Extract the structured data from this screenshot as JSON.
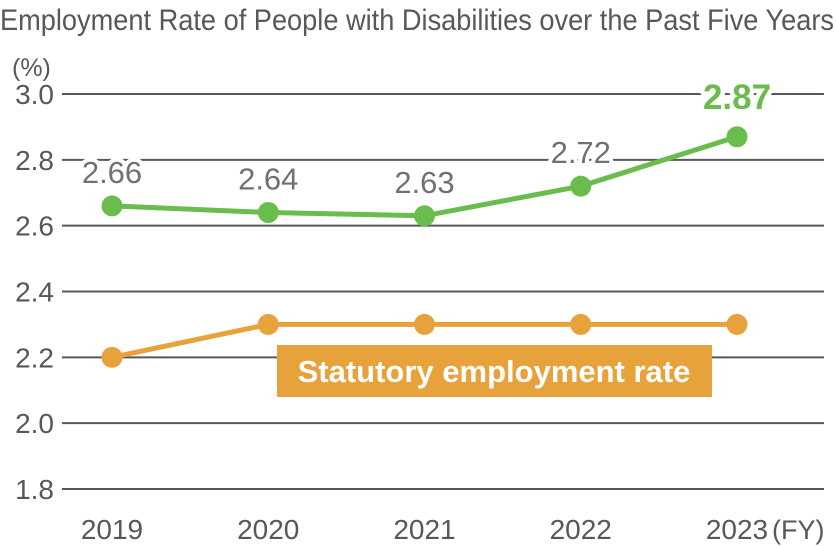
{
  "title": "Employment Rate of People with Disabilities over the Past Five Years",
  "y_axis_unit": "(%)",
  "x_axis_suffix": "(FY)",
  "statutory_label": "Statutory employment rate",
  "colors": {
    "background": "#ffffff",
    "axis_gray": "#595757",
    "data_label_gray": "#727070",
    "green": "#6abc4d",
    "orange": "#e8a23b",
    "label_outline": "#ffffff"
  },
  "chart_data": {
    "type": "line",
    "title": "Employment Rate of People with Disabilities over the Past Five Years",
    "ylabel": "(%)",
    "xlabel": "",
    "categories": [
      "2019",
      "2020",
      "2021",
      "2022",
      "2023"
    ],
    "x_suffix": "(FY)",
    "series": [
      {
        "name": "Employment rate of people with disabilities",
        "color": "#6abc4d",
        "values": [
          2.66,
          2.64,
          2.63,
          2.72,
          2.87
        ],
        "point_labels": [
          "2.66",
          "2.64",
          "2.63",
          "2.72",
          "2.87"
        ],
        "highlight_last_point_label": true
      },
      {
        "name": "Statutory employment rate",
        "color": "#e8a23b",
        "values": [
          2.2,
          2.3,
          2.3,
          2.3,
          2.3
        ],
        "inline_label": "Statutory employment rate"
      }
    ],
    "ylim": [
      1.8,
      3.0
    ],
    "yticks": [
      3.0,
      2.8,
      2.6,
      2.4,
      2.2,
      2.0,
      1.8
    ],
    "ytick_decimals": 1,
    "grid": true,
    "legend_position": "inline-box-on-plot"
  }
}
